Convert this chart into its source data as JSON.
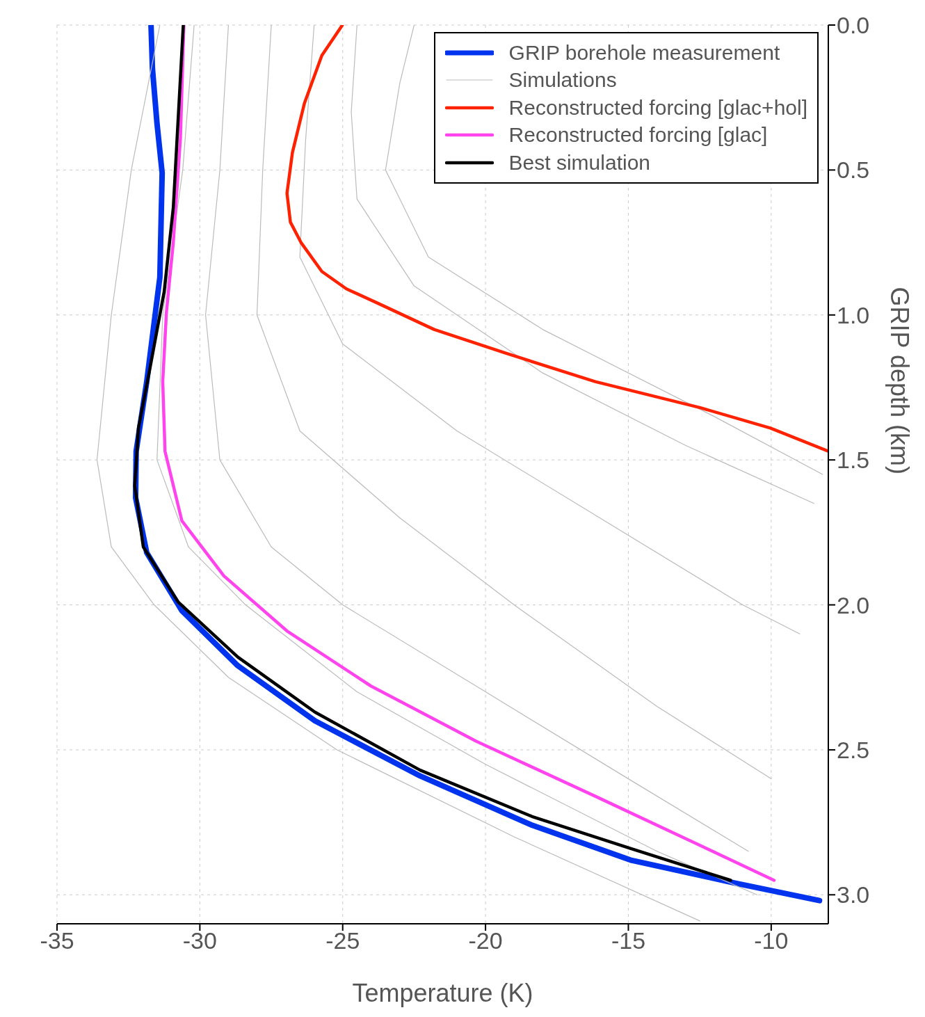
{
  "chart_data": {
    "type": "line",
    "xlabel": "Temperature (K)",
    "ylabel": "GRIP depth (km)",
    "xlim": [
      -35,
      -8
    ],
    "xticks": [
      -35,
      -30,
      -25,
      -20,
      -15,
      -10
    ],
    "ylim": [
      3.1,
      0
    ],
    "yticks": [
      {
        "value": 0,
        "label": "0.0"
      },
      {
        "value": 0.5,
        "label": "0.5"
      },
      {
        "value": 1,
        "label": "1.0"
      },
      {
        "value": 1.5,
        "label": "1.5"
      },
      {
        "value": 2,
        "label": "2.0"
      },
      {
        "value": 2.5,
        "label": "2.5"
      },
      {
        "value": 3,
        "label": "3.0"
      }
    ],
    "grid": true,
    "legend": "top right",
    "line_style": "solid",
    "marker": "none",
    "series": [
      {
        "name": "GRIP borehole measurement",
        "color": "#0033ee",
        "x": [
          -31.71,
          -31.66,
          -31.5,
          -31.32,
          -31.4,
          -31.86,
          -32.23,
          -32.25,
          -31.86,
          -30.63,
          -28.67,
          -25.97,
          -22.29,
          -18.37,
          -14.93,
          -11.25,
          -8.31
        ],
        "values": [
          0,
          0.15,
          0.34,
          0.51,
          0.87,
          1.23,
          1.47,
          1.63,
          1.82,
          2.02,
          2.21,
          2.4,
          2.59,
          2.76,
          2.88,
          2.96,
          3.02
        ]
      },
      {
        "name": "Simulations",
        "color": "#bbbbbb",
        "x": [
          -31.4,
          -32.4,
          -33.1,
          -33.6,
          -33.1,
          -31.6,
          -29,
          -25.2,
          -19,
          -12.5
        ],
        "values": [
          0,
          0.5,
          1.0,
          1.5,
          1.8,
          2.0,
          2.25,
          2.5,
          2.8,
          3.09
        ]
      },
      {
        "color": "#bbbbbb",
        "x": [
          -30.2,
          -30.6,
          -31.3,
          -31.5,
          -30.4,
          -28.4,
          -24.5,
          -20,
          -14,
          -10.5
        ],
        "values": [
          0,
          0.5,
          1.0,
          1.5,
          1.8,
          2.0,
          2.3,
          2.55,
          2.85,
          3.0
        ]
      },
      {
        "color": "#bbbbbb",
        "x": [
          -29,
          -29.3,
          -29.8,
          -29.3,
          -27.5,
          -25,
          -20,
          -15,
          -10.8
        ],
        "values": [
          0,
          0.5,
          1.0,
          1.5,
          1.8,
          2.0,
          2.3,
          2.6,
          2.85
        ]
      },
      {
        "color": "#bbbbbb",
        "x": [
          -27.5,
          -27.8,
          -28,
          -26.5,
          -23,
          -19,
          -14,
          -10
        ],
        "values": [
          0,
          0.5,
          1.0,
          1.4,
          1.7,
          2.0,
          2.35,
          2.6
        ]
      },
      {
        "color": "#bbbbbb",
        "x": [
          -26,
          -26.3,
          -26.5,
          -25,
          -21,
          -16,
          -11,
          -9
        ],
        "values": [
          0,
          0.4,
          0.8,
          1.1,
          1.4,
          1.7,
          2.0,
          2.1
        ]
      },
      {
        "color": "#bbbbbb",
        "x": [
          -24.5,
          -24.7,
          -24.5,
          -22.5,
          -18,
          -13,
          -8.5
        ],
        "values": [
          0,
          0.3,
          0.6,
          0.9,
          1.2,
          1.45,
          1.65
        ]
      },
      {
        "color": "#bbbbbb",
        "x": [
          -22.5,
          -23,
          -23.5,
          -22,
          -18,
          -12,
          -8.2
        ],
        "values": [
          0,
          0.2,
          0.5,
          0.8,
          1.05,
          1.35,
          1.55
        ]
      },
      {
        "name": "Reconstructed forcing [glac+hol]",
        "color": "#ff2200",
        "x": [
          -25.01,
          -25.73,
          -26.34,
          -26.76,
          -26.95,
          -26.83,
          -26.46,
          -25.73,
          -24.87,
          -23.76,
          -21.8,
          -19.35,
          -16.16,
          -12.48,
          -10.03,
          -8.0
        ],
        "values": [
          0,
          0.105,
          0.27,
          0.44,
          0.58,
          0.68,
          0.75,
          0.85,
          0.91,
          0.96,
          1.05,
          1.13,
          1.23,
          1.32,
          1.39,
          1.47
        ]
      },
      {
        "name": "Reconstructed forcing [glac]",
        "color": "#ff44ee",
        "x": [
          -30.56,
          -30.68,
          -30.93,
          -31.17,
          -31.3,
          -31.22,
          -30.63,
          -29.16,
          -26.95,
          -24.01,
          -20.33,
          -16.16,
          -12.48,
          -9.9
        ],
        "values": [
          0,
          0.39,
          0.75,
          0.99,
          1.23,
          1.47,
          1.71,
          1.9,
          2.09,
          2.28,
          2.47,
          2.66,
          2.83,
          2.95
        ]
      },
      {
        "name": "Best simulation",
        "color": "#000000",
        "x": [
          -30.58,
          -30.73,
          -30.93,
          -31.25,
          -31.74,
          -32.15,
          -32.28,
          -31.98,
          -30.76,
          -28.67,
          -25.97,
          -22.29,
          -18.37,
          -14.93,
          -11.42
        ],
        "values": [
          0,
          0.27,
          0.63,
          0.92,
          1.18,
          1.39,
          1.59,
          1.8,
          1.99,
          2.18,
          2.37,
          2.57,
          2.73,
          2.84,
          2.95
        ]
      }
    ]
  }
}
